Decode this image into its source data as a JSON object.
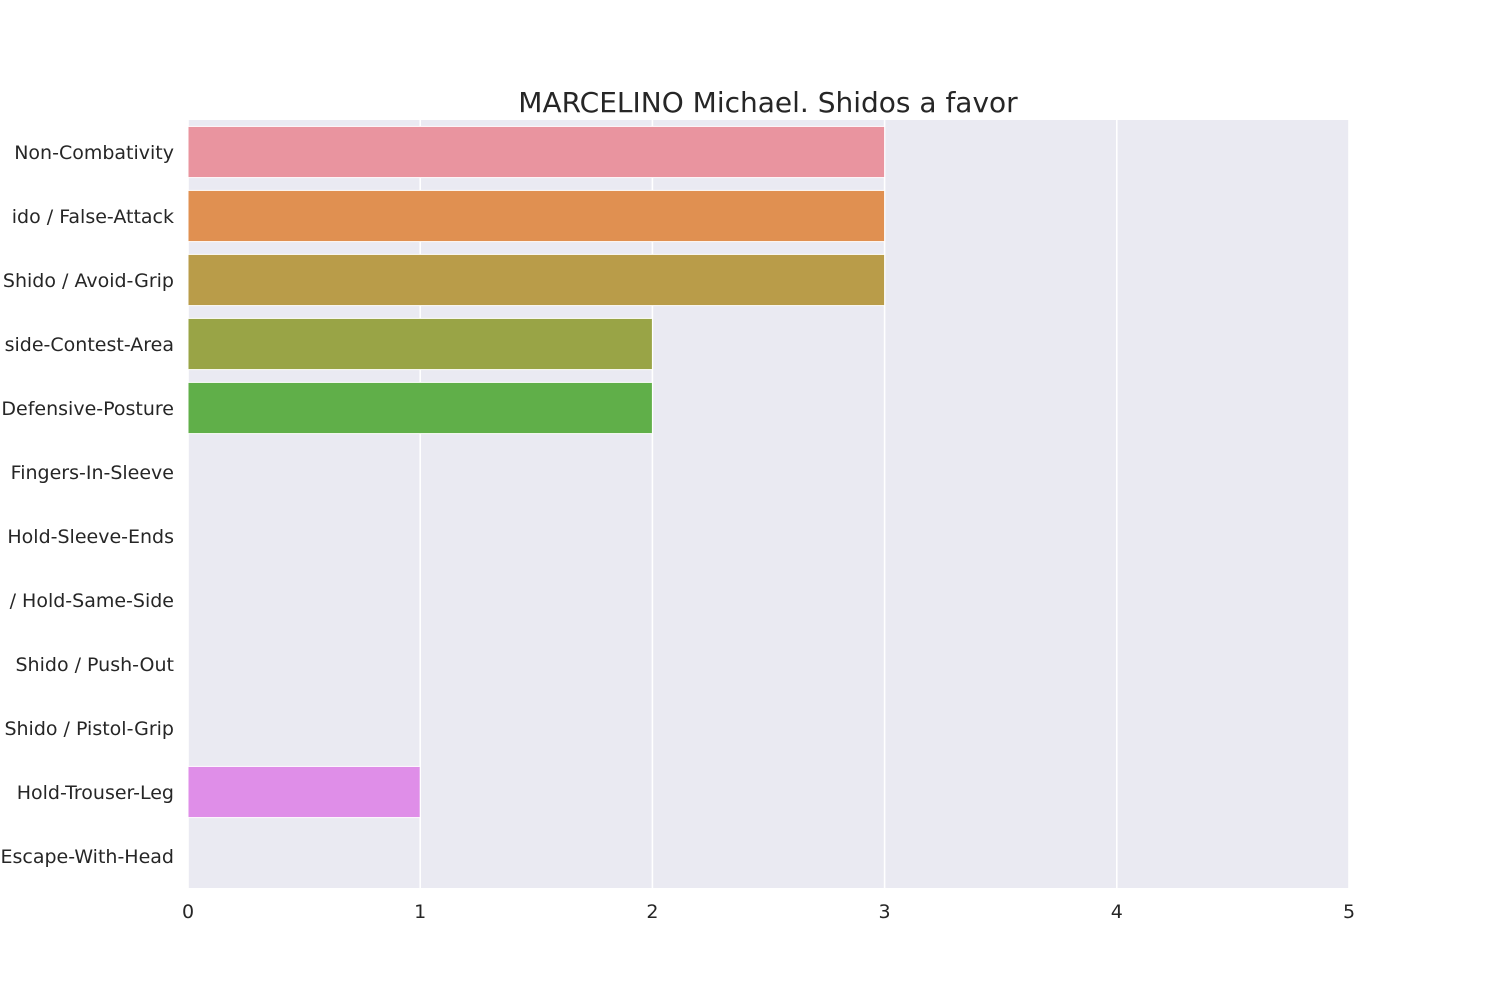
{
  "chart_data": {
    "type": "bar",
    "orientation": "horizontal",
    "title": "MARCELINO Michael. Shidos a favor",
    "xlabel": "",
    "ylabel": "",
    "xlim": [
      0,
      5
    ],
    "x_ticks": [
      "0",
      "1",
      "2",
      "3",
      "4",
      "5"
    ],
    "grid": true,
    "categories": [
      "Non-Combativity",
      "ido / False-Attack",
      "Shido / Avoid-Grip",
      "side-Contest-Area",
      "Defensive-Posture",
      "Fingers-In-Sleeve",
      "Hold-Sleeve-Ends",
      "/ Hold-Same-Side",
      "Shido / Push-Out",
      "Shido / Pistol-Grip",
      "Hold-Trouser-Leg",
      "Escape-With-Head"
    ],
    "values": [
      3,
      3,
      3,
      2,
      2,
      0,
      0,
      0,
      0,
      0,
      1,
      0
    ],
    "colors": [
      "#e9949f",
      "#e09051",
      "#b99c49",
      "#99a446",
      "#60af49",
      "#4cae7d",
      "#4fab9f",
      "#52a8b6",
      "#5aa4cf",
      "#a49ae8",
      "#df8ee8",
      "#e88fc3"
    ],
    "plot_background": "#eaeaf2",
    "grid_color": "#ffffff"
  }
}
